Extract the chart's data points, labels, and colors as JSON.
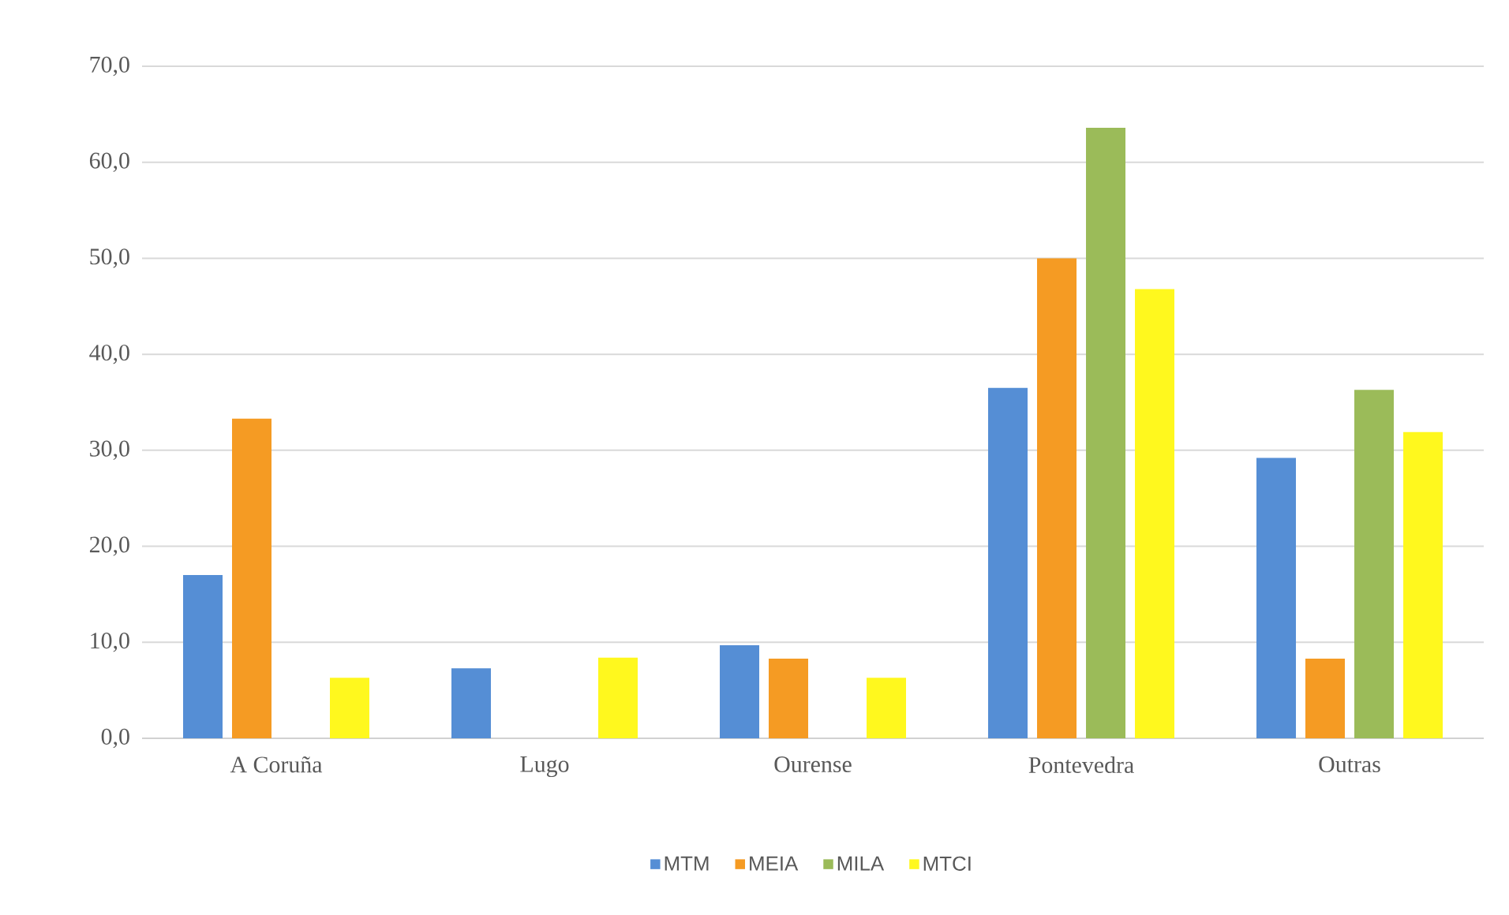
{
  "chart_data": {
    "type": "bar",
    "categories": [
      "A Coruña",
      "Lugo",
      "Ourense",
      "Pontevedra",
      "Outras"
    ],
    "series": [
      {
        "name": "MTM",
        "color": "#558ed5",
        "values": [
          17.0,
          7.3,
          9.7,
          36.5,
          29.2
        ]
      },
      {
        "name": "MEIA",
        "color": "#f59b23",
        "values": [
          33.3,
          null,
          8.3,
          50.0,
          8.3
        ]
      },
      {
        "name": "MILA",
        "color": "#9bbb59",
        "values": [
          null,
          null,
          null,
          63.6,
          36.3
        ]
      },
      {
        "name": "MTCI",
        "color": "#fff81e",
        "values": [
          6.3,
          8.4,
          6.3,
          46.8,
          31.9
        ]
      }
    ],
    "ylim": [
      0,
      70
    ],
    "yticks": [
      {
        "value": 0,
        "label": "0,0"
      },
      {
        "value": 10,
        "label": "10,0"
      },
      {
        "value": 20,
        "label": "20,0"
      },
      {
        "value": 30,
        "label": "30,0"
      },
      {
        "value": 40,
        "label": "40,0"
      },
      {
        "value": 50,
        "label": "50,0"
      },
      {
        "value": 60,
        "label": "60,0"
      },
      {
        "value": 70,
        "label": "70,0"
      }
    ],
    "grid": "y",
    "legend": "bottom"
  }
}
